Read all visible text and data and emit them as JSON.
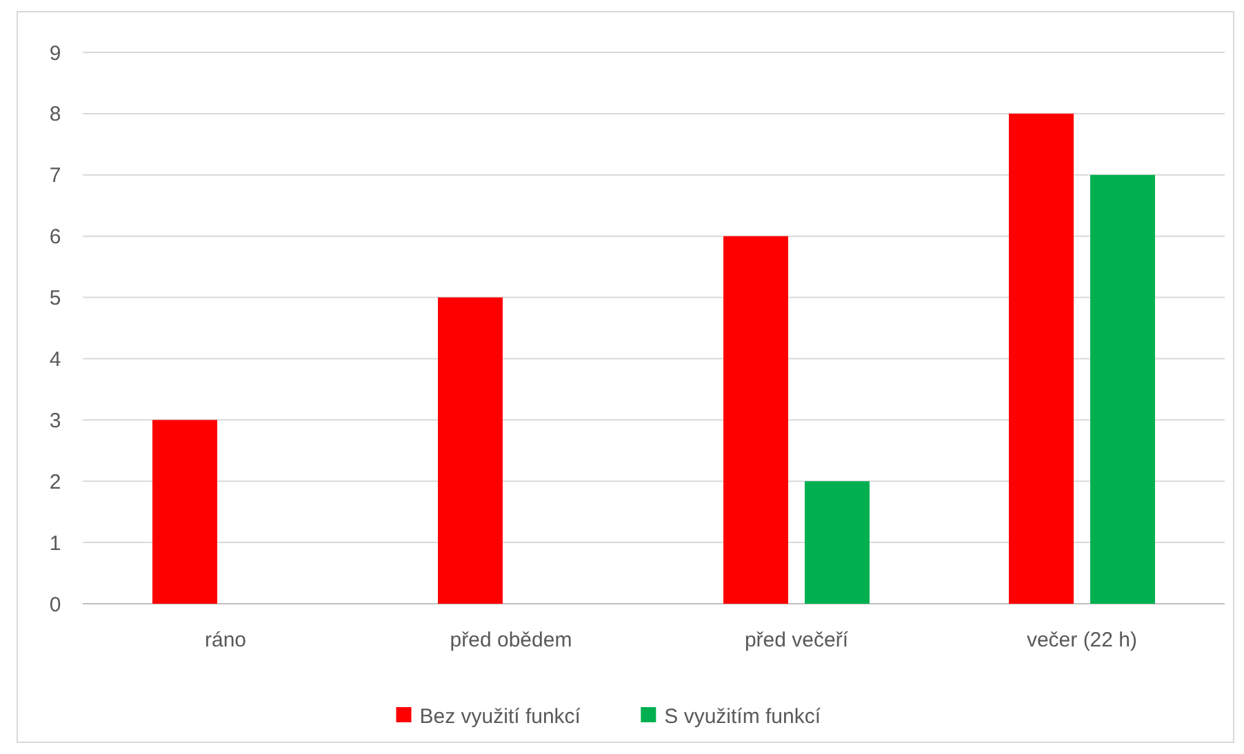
{
  "chart_data": {
    "type": "bar",
    "categories": [
      "ráno",
      "před obědem",
      "před večeří",
      "večer (22 h)"
    ],
    "series": [
      {
        "name": "Bez využití funkcí",
        "color": "#ff0000",
        "values": [
          3,
          5,
          6,
          8
        ]
      },
      {
        "name": "S využitím funkcí",
        "color": "#00b050",
        "values": [
          0,
          0,
          2,
          7
        ]
      }
    ],
    "ylim": [
      0,
      9
    ],
    "yticks": [
      0,
      1,
      2,
      3,
      4,
      5,
      6,
      7,
      8,
      9
    ],
    "grid": "y",
    "legend": "bottom"
  }
}
